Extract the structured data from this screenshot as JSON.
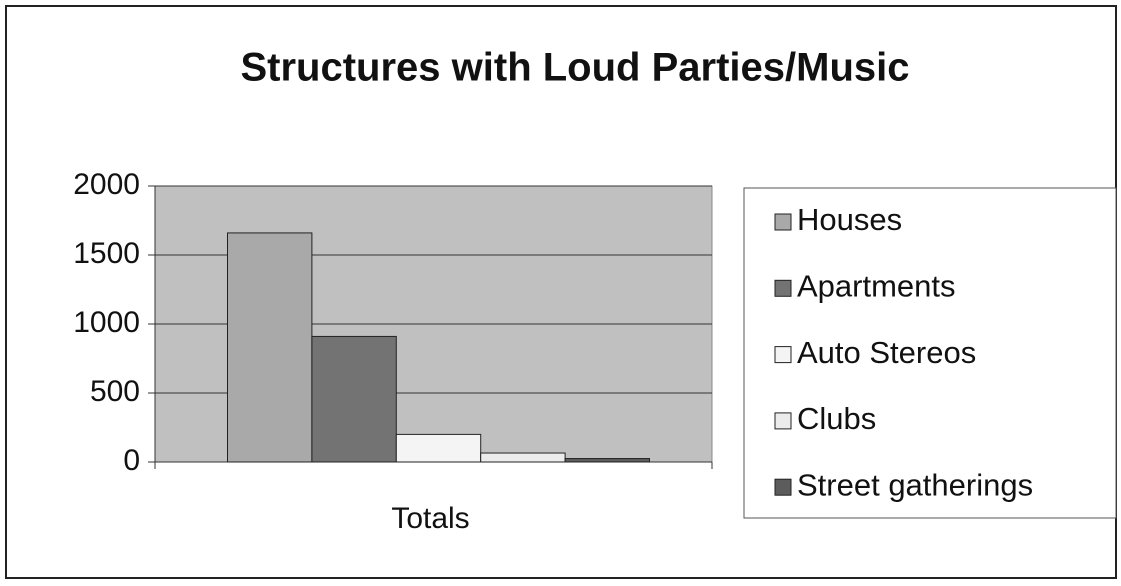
{
  "chart_data": {
    "type": "bar",
    "title": "Structures with Loud Parties/Music",
    "categories": [
      "Totals"
    ],
    "series": [
      {
        "name": "Houses",
        "color": "#a9a9a9",
        "values": [
          1660
        ]
      },
      {
        "name": "Apartments",
        "color": "#737373",
        "values": [
          910
        ]
      },
      {
        "name": "Auto Stereos",
        "color": "#f4f4f4",
        "values": [
          200
        ]
      },
      {
        "name": "Clubs",
        "color": "#ececec",
        "values": [
          65
        ]
      },
      {
        "name": "Street gatherings",
        "color": "#5c5c5c",
        "values": [
          25
        ]
      }
    ],
    "ylim": [
      0,
      2000
    ],
    "yticks": [
      0,
      500,
      1000,
      1500,
      2000
    ],
    "grid": true,
    "legend": "right"
  }
}
